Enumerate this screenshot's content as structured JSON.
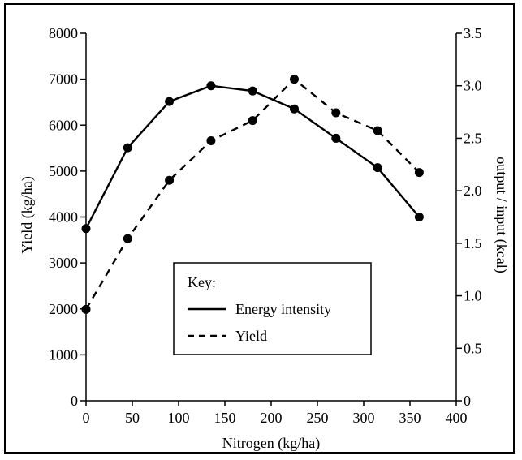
{
  "chart_data": {
    "type": "line",
    "x": [
      0,
      45,
      90,
      135,
      180,
      225,
      270,
      315,
      360
    ],
    "xlabel": "Nitrogen (kg/ha)",
    "xlim": [
      0,
      400
    ],
    "xticks": [
      "0",
      "50",
      "100",
      "150",
      "200",
      "250",
      "300",
      "350",
      "400"
    ],
    "ylabel_left": "Yield (kg/ha)",
    "ylim_left": [
      0,
      8000
    ],
    "yticks_left": [
      "0",
      "1000",
      "2000",
      "3000",
      "4000",
      "5000",
      "6000",
      "7000",
      "8000"
    ],
    "ylabel_right": "output / input (kcal)",
    "ylim_right": [
      0,
      3.5
    ],
    "yticks_right": [
      "0",
      "0.5",
      "1.0",
      "1.5",
      "2.0",
      "2.5",
      "3.0",
      "3.5"
    ],
    "series": [
      {
        "name": "Energy intensity",
        "axis": "right",
        "line_style": "solid",
        "values": [
          1.64,
          2.41,
          2.85,
          3.0,
          2.95,
          2.78,
          2.5,
          2.22,
          1.75
        ]
      },
      {
        "name": "Yield",
        "axis": "left",
        "line_style": "dashed",
        "values": [
          1990,
          3530,
          4800,
          5660,
          6100,
          7000,
          6270,
          5880,
          4970
        ]
      }
    ],
    "legend": {
      "title": "Key:",
      "placement": "center"
    },
    "grid": false
  }
}
